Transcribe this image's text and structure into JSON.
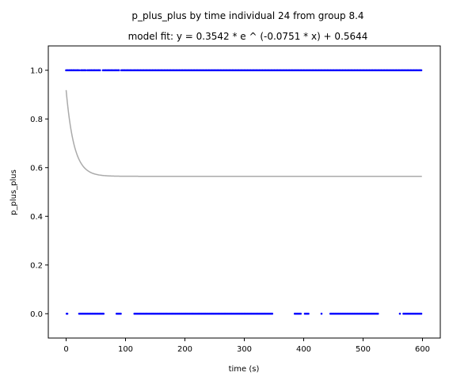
{
  "chart_data": {
    "type": "scatter",
    "title": "p_plus_plus by time individual 24 from group 8.4",
    "subtitle": "model fit: y = 0.3542 * e ^ (-0.0751 * x) + 0.5644",
    "xlabel": "time (s)",
    "ylabel": "p_plus_plus",
    "xlim": [
      -30,
      630
    ],
    "ylim": [
      -0.1,
      1.1
    ],
    "x_ticks": [
      0,
      100,
      200,
      300,
      400,
      500,
      600
    ],
    "x_tick_labels": [
      "0",
      "100",
      "200",
      "300",
      "400",
      "500",
      "600"
    ],
    "y_ticks": [
      0.0,
      0.2,
      0.4,
      0.6,
      0.8,
      1.0
    ],
    "y_tick_labels": [
      "0.0",
      "0.2",
      "0.4",
      "0.6",
      "0.8",
      "1.0"
    ],
    "grid": false,
    "colors": {
      "points": "#0000ff",
      "fit": "#aaaaaa"
    },
    "fit": {
      "a": 0.3542,
      "b": -0.0751,
      "c": 0.5644,
      "x_range": [
        0,
        599
      ]
    },
    "series": [
      {
        "values_y": 1,
        "x": [
          0,
          2,
          3,
          5,
          6,
          8,
          9,
          10,
          12,
          13,
          14,
          16,
          18,
          19,
          20,
          22,
          25,
          26,
          28,
          30,
          31,
          33,
          36,
          38,
          40,
          42,
          43,
          45,
          47,
          48,
          50,
          52,
          54,
          55,
          57,
          62,
          64,
          66,
          67,
          69,
          71,
          72,
          74,
          76,
          77,
          79,
          81,
          83,
          84,
          86,
          88,
          89,
          93,
          95,
          96,
          98,
          99,
          101,
          103,
          104,
          106,
          108,
          109,
          111,
          113,
          115,
          116,
          118,
          120,
          121,
          123,
          125,
          126,
          128,
          130,
          131,
          133,
          135,
          136,
          138,
          140,
          141,
          143,
          145,
          146,
          148,
          150,
          151,
          153,
          155,
          156,
          158,
          160,
          161,
          163,
          165,
          166,
          168,
          170,
          171,
          173,
          175,
          176,
          178,
          180,
          181,
          183,
          185,
          186,
          188,
          190,
          191,
          193,
          195,
          196,
          198,
          200,
          201,
          203,
          205,
          206,
          208,
          210,
          211,
          213,
          215,
          216,
          218,
          220,
          221,
          223,
          225,
          226,
          228,
          230,
          231,
          233,
          235,
          236,
          238,
          240,
          241,
          243,
          245,
          246,
          248,
          250,
          251,
          253,
          255,
          256,
          258,
          260,
          261,
          263,
          265,
          266,
          268,
          270,
          271,
          273,
          275,
          276,
          278,
          280,
          281,
          283,
          285,
          286,
          288,
          290,
          291,
          293,
          295,
          296,
          298,
          300,
          301,
          303,
          305,
          306,
          308,
          310,
          311,
          313,
          315,
          316,
          318,
          320,
          321,
          323,
          325,
          326,
          328,
          330,
          331,
          333,
          335,
          336,
          338,
          340,
          341,
          343,
          345,
          346,
          348,
          350,
          351,
          353,
          355,
          356,
          358,
          360,
          361,
          363,
          365,
          366,
          368,
          370,
          371,
          373,
          375,
          376,
          378,
          380,
          381,
          383,
          385,
          386,
          388,
          390,
          391,
          393,
          395,
          396,
          398,
          400,
          401,
          403,
          405,
          406,
          408,
          410,
          411,
          413,
          415,
          416,
          418,
          420,
          421,
          423,
          425,
          426,
          428,
          430,
          431,
          433,
          435,
          436,
          438,
          440,
          441,
          443,
          445,
          446,
          448,
          450,
          451,
          453,
          455,
          456,
          458,
          460,
          461,
          463,
          465,
          466,
          468,
          470,
          471,
          473,
          475,
          476,
          478,
          480,
          481,
          483,
          485,
          486,
          488,
          490,
          491,
          493,
          495,
          496,
          498,
          500,
          501,
          503,
          505,
          506,
          508,
          510,
          511,
          513,
          515,
          516,
          518,
          520,
          521,
          523,
          525,
          526,
          528,
          530,
          531,
          533,
          535,
          536,
          538,
          540,
          541,
          543,
          545,
          546,
          548,
          550,
          551,
          553,
          555,
          556,
          558,
          560,
          561,
          563,
          565,
          566,
          568,
          570,
          571,
          573,
          575,
          576,
          578,
          580,
          581,
          583,
          585,
          586,
          588,
          590,
          591,
          593,
          595,
          596,
          598
        ]
      },
      {
        "values_y": 0,
        "x": [
          1,
          2,
          22,
          24,
          25,
          27,
          28,
          29,
          31,
          32,
          33,
          35,
          36,
          37,
          39,
          40,
          41,
          42,
          44,
          45,
          46,
          48,
          49,
          50,
          52,
          53,
          54,
          56,
          57,
          58,
          59,
          61,
          62,
          63,
          85,
          86,
          88,
          89,
          91,
          92,
          115,
          117,
          118,
          120,
          122,
          124,
          125,
          127,
          129,
          131,
          133,
          135,
          136,
          138,
          140,
          142,
          144,
          146,
          147,
          149,
          151,
          153,
          155,
          157,
          158,
          160,
          162,
          164,
          166,
          168,
          169,
          171,
          173,
          175,
          177,
          179,
          180,
          182,
          184,
          186,
          188,
          190,
          191,
          193,
          195,
          197,
          199,
          201,
          202,
          204,
          206,
          208,
          210,
          212,
          213,
          215,
          217,
          219,
          221,
          223,
          224,
          226,
          228,
          230,
          232,
          234,
          235,
          237,
          239,
          241,
          243,
          245,
          246,
          248,
          250,
          252,
          254,
          256,
          257,
          259,
          261,
          263,
          265,
          267,
          268,
          270,
          272,
          274,
          276,
          278,
          279,
          281,
          283,
          285,
          287,
          289,
          290,
          292,
          294,
          296,
          298,
          300,
          301,
          303,
          305,
          307,
          309,
          311,
          312,
          314,
          316,
          318,
          320,
          322,
          323,
          325,
          327,
          329,
          331,
          333,
          334,
          336,
          338,
          340,
          342,
          344,
          346,
          347,
          385,
          387,
          389,
          391,
          393,
          395,
          402,
          404,
          406,
          408,
          430,
          445,
          447,
          449,
          451,
          453,
          455,
          457,
          459,
          461,
          463,
          465,
          467,
          469,
          471,
          473,
          475,
          477,
          479,
          481,
          483,
          485,
          487,
          489,
          491,
          493,
          495,
          497,
          499,
          501,
          503,
          505,
          507,
          509,
          511,
          513,
          515,
          517,
          519,
          521,
          523,
          525,
          562,
          568,
          570,
          572,
          574,
          576,
          578,
          580,
          582,
          584,
          586,
          588,
          590,
          592,
          594,
          596,
          598
        ]
      }
    ]
  }
}
